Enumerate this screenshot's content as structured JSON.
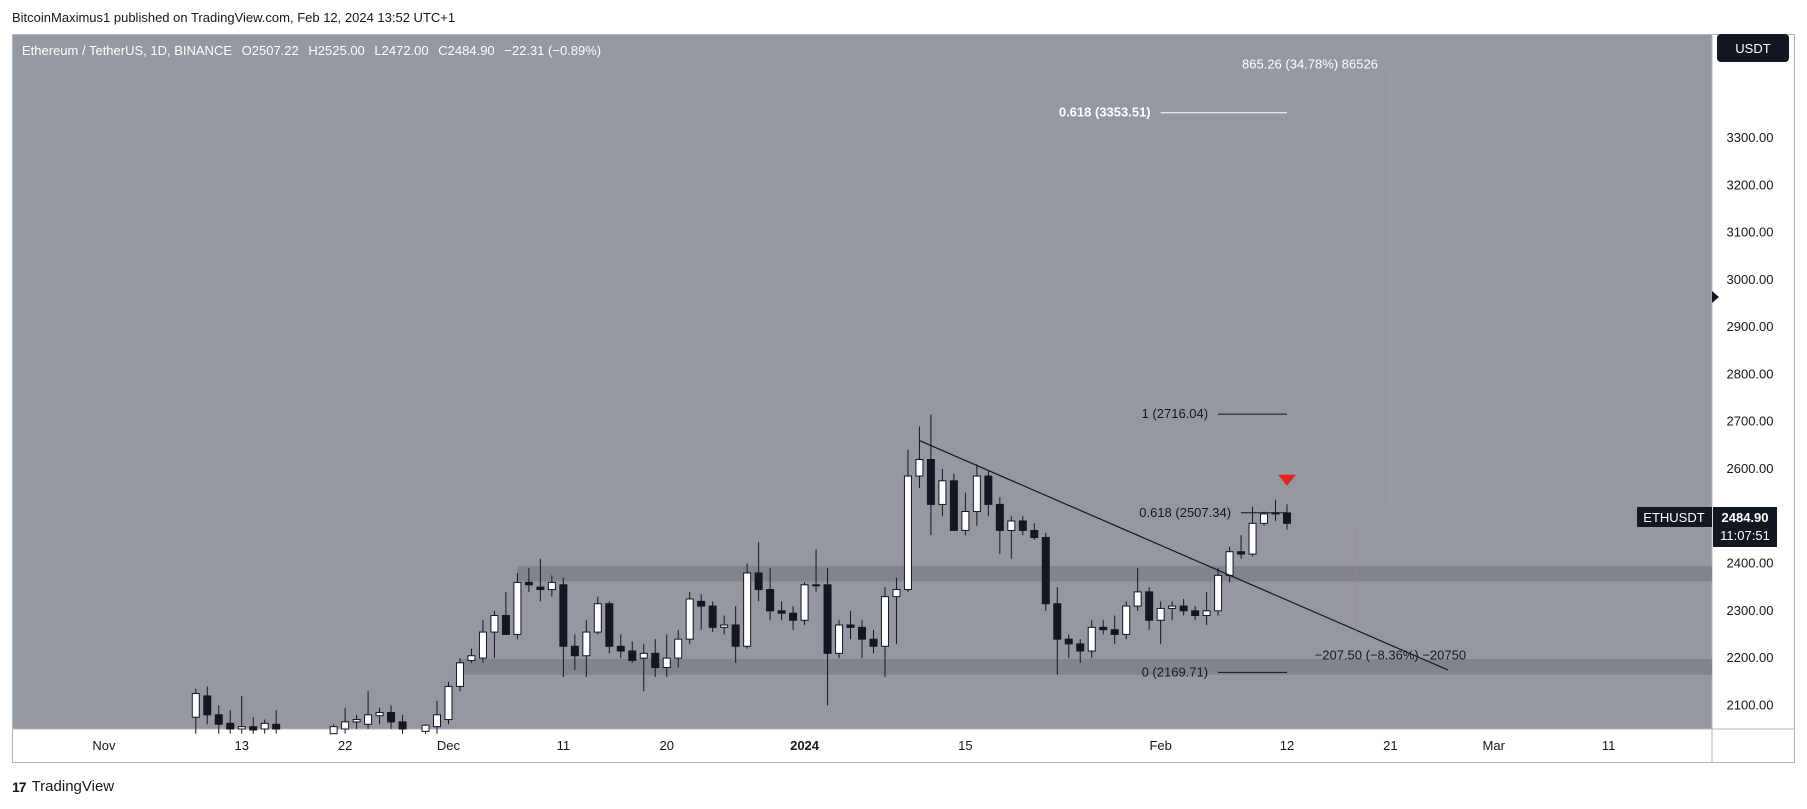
{
  "publisher": "BitcoinMaximus1 published on TradingView.com, Feb 12, 2024 13:52 UTC+1",
  "footer_brand": "TradingView",
  "footer_logo": "17",
  "currency_button": "USDT",
  "legend": {
    "symbol": "Ethereum / TetherUS, 1D, BINANCE",
    "open_label": "O",
    "open": "2507.22",
    "high_label": "H",
    "high": "2525.00",
    "low_label": "L",
    "low": "2472.00",
    "close_label": "C",
    "close": "2484.90",
    "change": "−22.31 (−0.89%)"
  },
  "price_tag": {
    "symbol": "ETHUSDT",
    "price": "2484.90",
    "countdown": "11:07:51"
  },
  "colors": {
    "background": "#9498a1",
    "axis_bg": "#ffffff",
    "up_body": "#ffffff",
    "down_body": "#131722",
    "wick": "#131722",
    "zone": "#7c8088",
    "signal": "#e8231e"
  },
  "chart_data": {
    "type": "candlestick",
    "title": "Ethereum / TetherUS, 1D, BINANCE",
    "ylabel": "USDT",
    "ylim": [
      2050,
      3520
    ],
    "y_ticks": [
      2100,
      2200,
      2300,
      2400,
      2500,
      2600,
      2700,
      2800,
      2900,
      3000,
      3100,
      3200,
      3300
    ],
    "y_tick_labels": [
      "2100.00",
      "2200.00",
      "2300.00",
      "2400.00",
      "2500.00",
      "2600.00",
      "2700.00",
      "2800.00",
      "2900.00",
      "3000.00",
      "3100.00",
      "3200.00",
      "3300.00"
    ],
    "x_range": [
      "2023-10-24",
      "2024-03-20"
    ],
    "x_ticks": [
      {
        "date": "2023-11-01",
        "label": "Nov",
        "bold": false
      },
      {
        "date": "2023-11-13",
        "label": "13",
        "bold": false
      },
      {
        "date": "2023-11-22",
        "label": "22",
        "bold": false
      },
      {
        "date": "2023-12-01",
        "label": "Dec",
        "bold": false
      },
      {
        "date": "2023-12-11",
        "label": "11",
        "bold": false
      },
      {
        "date": "2023-12-20",
        "label": "20",
        "bold": false
      },
      {
        "date": "2024-01-01",
        "label": "2024",
        "bold": true
      },
      {
        "date": "2024-01-15",
        "label": "15",
        "bold": false
      },
      {
        "date": "2024-02-01",
        "label": "Feb",
        "bold": false
      },
      {
        "date": "2024-02-12",
        "label": "12",
        "bold": false
      },
      {
        "date": "2024-02-21",
        "label": "21",
        "bold": false
      },
      {
        "date": "2024-03-01",
        "label": "Mar",
        "bold": false
      },
      {
        "date": "2024-03-11",
        "label": "11",
        "bold": false
      }
    ],
    "candles": [
      {
        "date": "2023-11-09",
        "o": 2075,
        "h": 2135,
        "l": 2040,
        "c": 2125
      },
      {
        "date": "2023-11-10",
        "o": 2120,
        "h": 2140,
        "l": 2060,
        "c": 2080
      },
      {
        "date": "2023-11-11",
        "o": 2080,
        "h": 2100,
        "l": 2040,
        "c": 2060
      },
      {
        "date": "2023-11-12",
        "o": 2062,
        "h": 2090,
        "l": 2040,
        "c": 2050
      },
      {
        "date": "2023-11-13",
        "o": 2050,
        "h": 2120,
        "l": 2040,
        "c": 2055
      },
      {
        "date": "2023-11-14",
        "o": 2055,
        "h": 2075,
        "l": 2040,
        "c": 2048
      },
      {
        "date": "2023-11-15",
        "o": 2050,
        "h": 2070,
        "l": 2040,
        "c": 2062
      },
      {
        "date": "2023-11-16",
        "o": 2060,
        "h": 2090,
        "l": 2040,
        "c": 2050
      },
      {
        "date": "2023-11-21",
        "o": 2040,
        "h": 2060,
        "l": 2040,
        "c": 2055
      },
      {
        "date": "2023-11-22",
        "o": 2050,
        "h": 2095,
        "l": 2040,
        "c": 2065
      },
      {
        "date": "2023-11-23",
        "o": 2065,
        "h": 2080,
        "l": 2050,
        "c": 2070
      },
      {
        "date": "2023-11-24",
        "o": 2060,
        "h": 2130,
        "l": 2050,
        "c": 2080
      },
      {
        "date": "2023-11-25",
        "o": 2078,
        "h": 2095,
        "l": 2060,
        "c": 2085
      },
      {
        "date": "2023-11-26",
        "o": 2085,
        "h": 2100,
        "l": 2050,
        "c": 2065
      },
      {
        "date": "2023-11-27",
        "o": 2065,
        "h": 2080,
        "l": 2040,
        "c": 2050
      },
      {
        "date": "2023-11-29",
        "o": 2045,
        "h": 2060,
        "l": 2040,
        "c": 2058
      },
      {
        "date": "2023-11-30",
        "o": 2055,
        "h": 2110,
        "l": 2040,
        "c": 2080
      },
      {
        "date": "2023-12-01",
        "o": 2070,
        "h": 2150,
        "l": 2060,
        "c": 2140
      },
      {
        "date": "2023-12-02",
        "o": 2140,
        "h": 2200,
        "l": 2130,
        "c": 2190
      },
      {
        "date": "2023-12-03",
        "o": 2195,
        "h": 2220,
        "l": 2190,
        "c": 2205
      },
      {
        "date": "2023-12-04",
        "o": 2200,
        "h": 2280,
        "l": 2190,
        "c": 2255
      },
      {
        "date": "2023-12-05",
        "o": 2255,
        "h": 2300,
        "l": 2200,
        "c": 2290
      },
      {
        "date": "2023-12-06",
        "o": 2290,
        "h": 2340,
        "l": 2260,
        "c": 2250
      },
      {
        "date": "2023-12-07",
        "o": 2250,
        "h": 2380,
        "l": 2240,
        "c": 2360
      },
      {
        "date": "2023-12-08",
        "o": 2360,
        "h": 2390,
        "l": 2340,
        "c": 2355
      },
      {
        "date": "2023-12-09",
        "o": 2350,
        "h": 2410,
        "l": 2320,
        "c": 2345
      },
      {
        "date": "2023-12-10",
        "o": 2345,
        "h": 2375,
        "l": 2330,
        "c": 2360
      },
      {
        "date": "2023-12-11",
        "o": 2355,
        "h": 2370,
        "l": 2160,
        "c": 2225
      },
      {
        "date": "2023-12-12",
        "o": 2225,
        "h": 2250,
        "l": 2175,
        "c": 2205
      },
      {
        "date": "2023-12-13",
        "o": 2205,
        "h": 2280,
        "l": 2160,
        "c": 2255
      },
      {
        "date": "2023-12-14",
        "o": 2255,
        "h": 2330,
        "l": 2250,
        "c": 2315
      },
      {
        "date": "2023-12-15",
        "o": 2315,
        "h": 2320,
        "l": 2210,
        "c": 2225
      },
      {
        "date": "2023-12-16",
        "o": 2225,
        "h": 2250,
        "l": 2200,
        "c": 2215
      },
      {
        "date": "2023-12-17",
        "o": 2215,
        "h": 2235,
        "l": 2190,
        "c": 2195
      },
      {
        "date": "2023-12-18",
        "o": 2200,
        "h": 2230,
        "l": 2130,
        "c": 2210
      },
      {
        "date": "2023-12-19",
        "o": 2210,
        "h": 2240,
        "l": 2160,
        "c": 2180
      },
      {
        "date": "2023-12-20",
        "o": 2180,
        "h": 2250,
        "l": 2160,
        "c": 2200
      },
      {
        "date": "2023-12-21",
        "o": 2200,
        "h": 2260,
        "l": 2180,
        "c": 2240
      },
      {
        "date": "2023-12-22",
        "o": 2240,
        "h": 2340,
        "l": 2230,
        "c": 2325
      },
      {
        "date": "2023-12-23",
        "o": 2320,
        "h": 2335,
        "l": 2260,
        "c": 2310
      },
      {
        "date": "2023-12-24",
        "o": 2310,
        "h": 2320,
        "l": 2255,
        "c": 2265
      },
      {
        "date": "2023-12-25",
        "o": 2265,
        "h": 2290,
        "l": 2250,
        "c": 2270
      },
      {
        "date": "2023-12-26",
        "o": 2270,
        "h": 2310,
        "l": 2190,
        "c": 2225
      },
      {
        "date": "2023-12-27",
        "o": 2225,
        "h": 2400,
        "l": 2220,
        "c": 2380
      },
      {
        "date": "2023-12-28",
        "o": 2380,
        "h": 2445,
        "l": 2320,
        "c": 2345
      },
      {
        "date": "2023-12-29",
        "o": 2345,
        "h": 2390,
        "l": 2280,
        "c": 2300
      },
      {
        "date": "2023-12-30",
        "o": 2300,
        "h": 2320,
        "l": 2280,
        "c": 2295
      },
      {
        "date": "2023-12-31",
        "o": 2295,
        "h": 2310,
        "l": 2260,
        "c": 2280
      },
      {
        "date": "2024-01-01",
        "o": 2280,
        "h": 2360,
        "l": 2270,
        "c": 2355
      },
      {
        "date": "2024-01-02",
        "o": 2355,
        "h": 2430,
        "l": 2340,
        "c": 2355
      },
      {
        "date": "2024-01-03",
        "o": 2355,
        "h": 2390,
        "l": 2100,
        "c": 2210
      },
      {
        "date": "2024-01-04",
        "o": 2210,
        "h": 2280,
        "l": 2200,
        "c": 2270
      },
      {
        "date": "2024-01-05",
        "o": 2270,
        "h": 2300,
        "l": 2240,
        "c": 2265
      },
      {
        "date": "2024-01-06",
        "o": 2265,
        "h": 2280,
        "l": 2200,
        "c": 2240
      },
      {
        "date": "2024-01-07",
        "o": 2240,
        "h": 2260,
        "l": 2210,
        "c": 2225
      },
      {
        "date": "2024-01-08",
        "o": 2225,
        "h": 2350,
        "l": 2160,
        "c": 2330
      },
      {
        "date": "2024-01-09",
        "o": 2330,
        "h": 2370,
        "l": 2230,
        "c": 2345
      },
      {
        "date": "2024-01-10",
        "o": 2345,
        "h": 2640,
        "l": 2340,
        "c": 2585
      },
      {
        "date": "2024-01-11",
        "o": 2585,
        "h": 2690,
        "l": 2560,
        "c": 2620
      },
      {
        "date": "2024-01-12",
        "o": 2620,
        "h": 2715,
        "l": 2460,
        "c": 2525
      },
      {
        "date": "2024-01-13",
        "o": 2525,
        "h": 2600,
        "l": 2500,
        "c": 2575
      },
      {
        "date": "2024-01-14",
        "o": 2575,
        "h": 2590,
        "l": 2470,
        "c": 2470
      },
      {
        "date": "2024-01-15",
        "o": 2470,
        "h": 2550,
        "l": 2460,
        "c": 2510
      },
      {
        "date": "2024-01-16",
        "o": 2510,
        "h": 2610,
        "l": 2480,
        "c": 2585
      },
      {
        "date": "2024-01-17",
        "o": 2585,
        "h": 2595,
        "l": 2500,
        "c": 2525
      },
      {
        "date": "2024-01-18",
        "o": 2525,
        "h": 2540,
        "l": 2420,
        "c": 2470
      },
      {
        "date": "2024-01-19",
        "o": 2470,
        "h": 2500,
        "l": 2410,
        "c": 2490
      },
      {
        "date": "2024-01-20",
        "o": 2490,
        "h": 2500,
        "l": 2460,
        "c": 2470
      },
      {
        "date": "2024-01-21",
        "o": 2470,
        "h": 2485,
        "l": 2450,
        "c": 2455
      },
      {
        "date": "2024-01-22",
        "o": 2455,
        "h": 2465,
        "l": 2300,
        "c": 2315
      },
      {
        "date": "2024-01-23",
        "o": 2315,
        "h": 2350,
        "l": 2165,
        "c": 2240
      },
      {
        "date": "2024-01-24",
        "o": 2240,
        "h": 2250,
        "l": 2200,
        "c": 2230
      },
      {
        "date": "2024-01-25",
        "o": 2230,
        "h": 2240,
        "l": 2190,
        "c": 2215
      },
      {
        "date": "2024-01-26",
        "o": 2215,
        "h": 2280,
        "l": 2200,
        "c": 2265
      },
      {
        "date": "2024-01-27",
        "o": 2265,
        "h": 2280,
        "l": 2250,
        "c": 2260
      },
      {
        "date": "2024-01-28",
        "o": 2260,
        "h": 2290,
        "l": 2230,
        "c": 2250
      },
      {
        "date": "2024-01-29",
        "o": 2250,
        "h": 2320,
        "l": 2240,
        "c": 2310
      },
      {
        "date": "2024-01-30",
        "o": 2310,
        "h": 2390,
        "l": 2300,
        "c": 2340
      },
      {
        "date": "2024-01-31",
        "o": 2340,
        "h": 2350,
        "l": 2260,
        "c": 2280
      },
      {
        "date": "2024-02-01",
        "o": 2280,
        "h": 2320,
        "l": 2230,
        "c": 2305
      },
      {
        "date": "2024-02-02",
        "o": 2305,
        "h": 2320,
        "l": 2280,
        "c": 2310
      },
      {
        "date": "2024-02-03",
        "o": 2310,
        "h": 2325,
        "l": 2290,
        "c": 2300
      },
      {
        "date": "2024-02-04",
        "o": 2300,
        "h": 2310,
        "l": 2280,
        "c": 2290
      },
      {
        "date": "2024-02-05",
        "o": 2290,
        "h": 2340,
        "l": 2270,
        "c": 2300
      },
      {
        "date": "2024-02-06",
        "o": 2300,
        "h": 2390,
        "l": 2290,
        "c": 2375
      },
      {
        "date": "2024-02-07",
        "o": 2375,
        "h": 2435,
        "l": 2360,
        "c": 2425
      },
      {
        "date": "2024-02-08",
        "o": 2425,
        "h": 2460,
        "l": 2410,
        "c": 2420
      },
      {
        "date": "2024-02-09",
        "o": 2420,
        "h": 2520,
        "l": 2415,
        "c": 2485
      },
      {
        "date": "2024-02-10",
        "o": 2485,
        "h": 2510,
        "l": 2480,
        "c": 2505
      },
      {
        "date": "2024-02-11",
        "o": 2505,
        "h": 2535,
        "l": 2490,
        "c": 2507
      },
      {
        "date": "2024-02-12",
        "o": 2507,
        "h": 2525,
        "l": 2472,
        "c": 2485
      }
    ],
    "horizontal_zones": [
      {
        "from": 2362,
        "to": 2395,
        "start": "2023-12-07"
      },
      {
        "from": 2165,
        "to": 2198,
        "start": "2023-12-02"
      }
    ],
    "trendline": {
      "start": {
        "date": "2024-01-11",
        "price": 2660
      },
      "end": {
        "date": "2024-02-26",
        "price": 2175
      }
    },
    "fib_levels": [
      {
        "label": "0.618 (3353.51)",
        "price": 3353.51,
        "start": "2024-02-01",
        "end": "2024-02-12"
      },
      {
        "label": "1 (2716.04)",
        "price": 2716.04,
        "start": "2024-02-06",
        "end": "2024-02-12"
      },
      {
        "label": "0.618 (2507.34)",
        "price": 2507.34,
        "start": "2024-02-08",
        "end": "2024-02-12"
      },
      {
        "label": "0 (2169.71)",
        "price": 2169.71,
        "start": "2024-02-06",
        "end": "2024-02-12"
      }
    ],
    "measure_labels": [
      {
        "text": "865.26 (34.78%) 86526",
        "price": 3455,
        "date": "2024-02-14"
      },
      {
        "text": "−207.50 (−8.36%) −20750",
        "price": 2205,
        "date": "2024-02-21"
      }
    ],
    "signal_marker": {
      "date": "2024-02-12",
      "price": 2575,
      "shape": "down-triangle"
    }
  }
}
